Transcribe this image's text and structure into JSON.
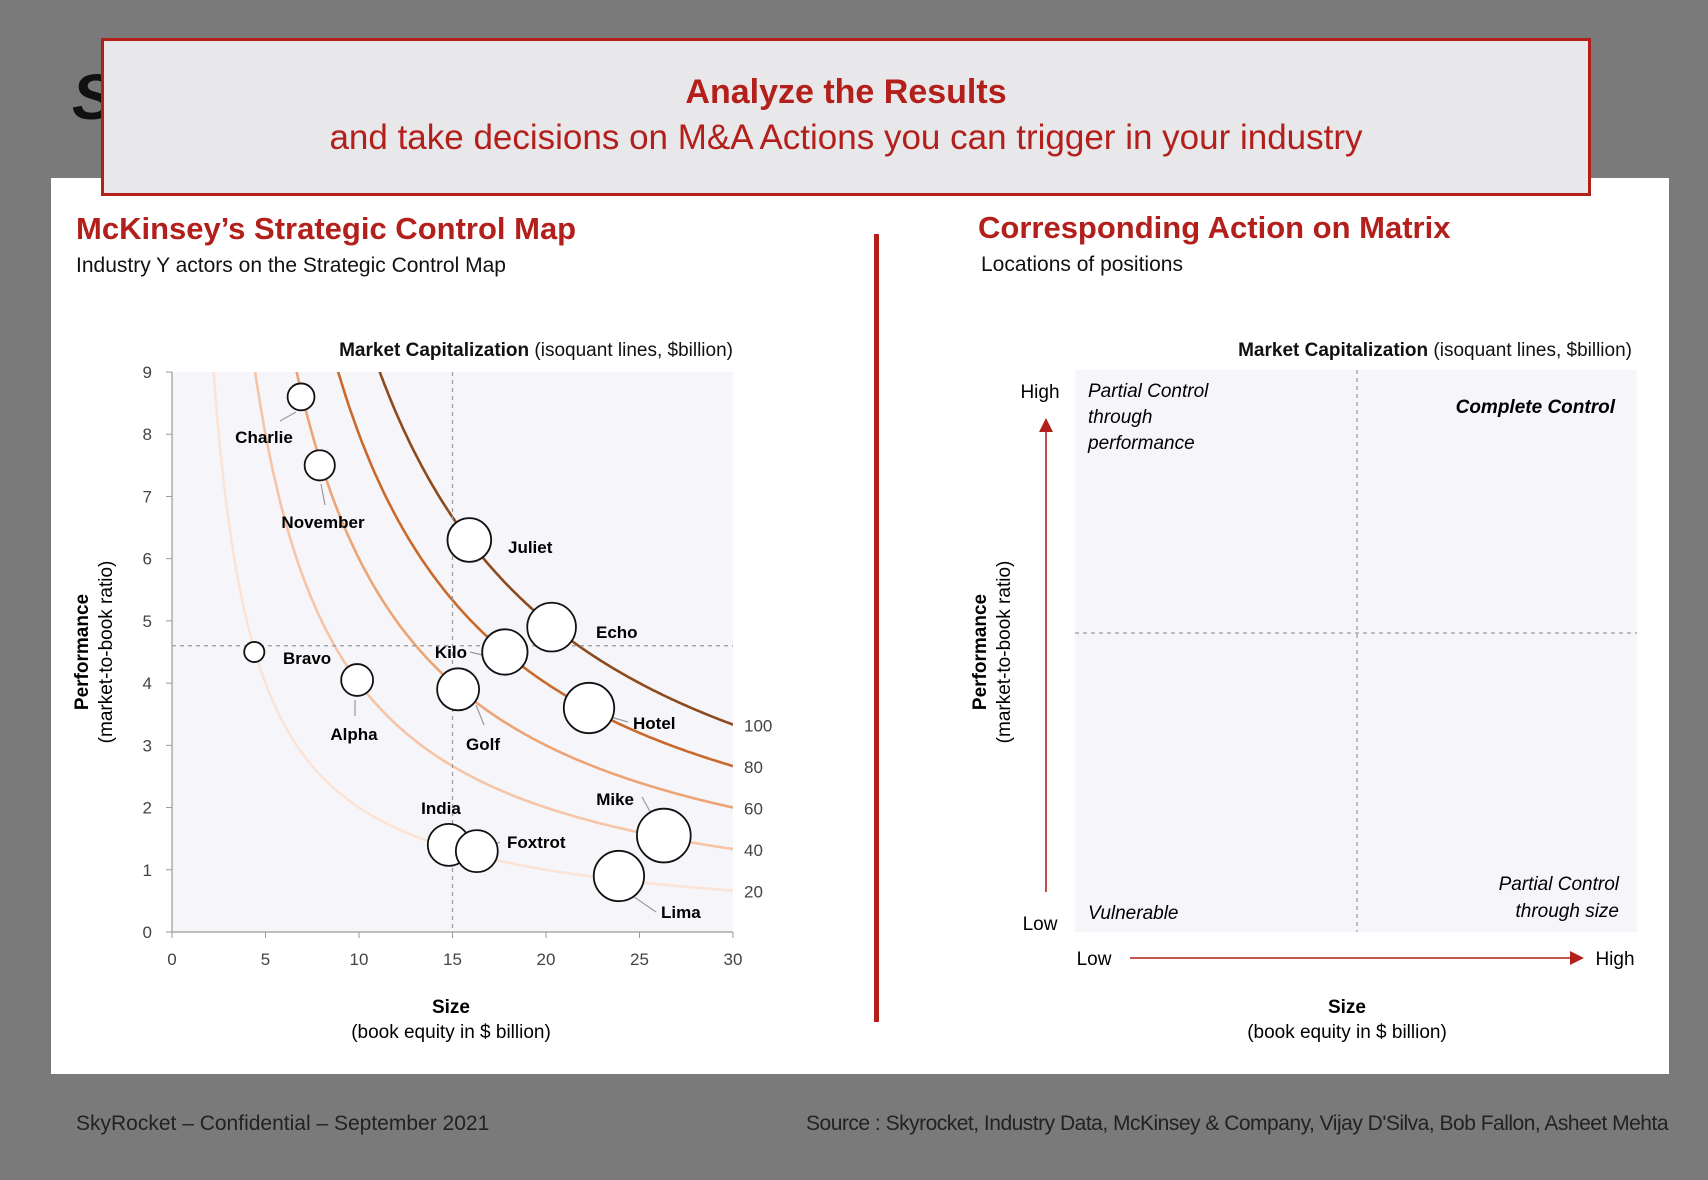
{
  "banner": {
    "title": "Analyze the Results",
    "subtitle": "and take decisions on M&A Actions you can trigger in your industry"
  },
  "left_panel": {
    "title": "McKinsey’s Strategic Control Map",
    "subtitle": "Industry Y actors on the Strategic Control Map"
  },
  "right_panel": {
    "title": "Corresponding Action on Matrix",
    "subtitle": "Locations of positions"
  },
  "footer": {
    "left": "SkyRocket – Confidential – September 2021",
    "right": "Source : Skyrocket, Industry Data, McKinsey & Company, Vijay D'Silva, Bob Fallon, Asheet Mehta"
  },
  "colors": {
    "accent": "#b3201c",
    "plot_bg": "#f6f6fa",
    "isoquants": [
      "#fbe3d6",
      "#f6c4a6",
      "#eda474",
      "#c96a2b",
      "#8c4a1e"
    ]
  },
  "chart_data": [
    {
      "type": "scatter",
      "title_bold": "Market Capitalization",
      "title_rest": " (isoquant lines, $billion)",
      "xlabel": "Size",
      "xlabel_sub": "(book equity in $ billion)",
      "ylabel": "Performance",
      "ylabel_sub": "(market-to-book ratio)",
      "xlim": [
        0,
        30
      ],
      "ylim": [
        0,
        9
      ],
      "xticks": [
        0,
        5,
        10,
        15,
        20,
        25,
        30
      ],
      "yticks": [
        0,
        1,
        2,
        3,
        4,
        5,
        6,
        7,
        8,
        9
      ],
      "ref_lines": {
        "x": 15,
        "y": 4.6
      },
      "isoquants": [
        20,
        40,
        60,
        80,
        100
      ],
      "points": [
        {
          "name": "Charlie",
          "x": 6.9,
          "y": 8.6,
          "size": 0.8
        },
        {
          "name": "November",
          "x": 7.9,
          "y": 7.5,
          "size": 0.9
        },
        {
          "name": "Juliet",
          "x": 15.9,
          "y": 6.3,
          "size": 1.3
        },
        {
          "name": "Echo",
          "x": 20.3,
          "y": 4.9,
          "size": 1.45
        },
        {
          "name": "Kilo",
          "x": 17.8,
          "y": 4.5,
          "size": 1.35
        },
        {
          "name": "Bravo",
          "x": 4.4,
          "y": 4.5,
          "size": 0.6
        },
        {
          "name": "Alpha",
          "x": 9.9,
          "y": 4.05,
          "size": 0.95
        },
        {
          "name": "Golf",
          "x": 15.3,
          "y": 3.9,
          "size": 1.25
        },
        {
          "name": "Hotel",
          "x": 22.3,
          "y": 3.6,
          "size": 1.5
        },
        {
          "name": "Mike",
          "x": 26.3,
          "y": 1.55,
          "size": 1.6
        },
        {
          "name": "India",
          "x": 14.8,
          "y": 1.4,
          "size": 1.25
        },
        {
          "name": "Foxtrot",
          "x": 16.3,
          "y": 1.3,
          "size": 1.25
        },
        {
          "name": "Lima",
          "x": 23.9,
          "y": 0.9,
          "size": 1.5
        }
      ]
    },
    {
      "type": "table",
      "title_bold": "Market Capitalization",
      "title_rest": " (isoquant lines, $billion)",
      "xlabel": "Size",
      "xlabel_sub": "(book equity in $ billion)",
      "ylabel": "Performance",
      "ylabel_sub": "(market-to-book ratio)",
      "y_high": "High",
      "y_low": "Low",
      "x_low": "Low",
      "x_high": "High",
      "quadrants": {
        "top_left": [
          "Partial Control",
          "through",
          "performance"
        ],
        "top_right": "Complete Control",
        "bottom_left": "Vulnerable",
        "bottom_right": [
          "Partial Control",
          "through size"
        ]
      }
    }
  ]
}
